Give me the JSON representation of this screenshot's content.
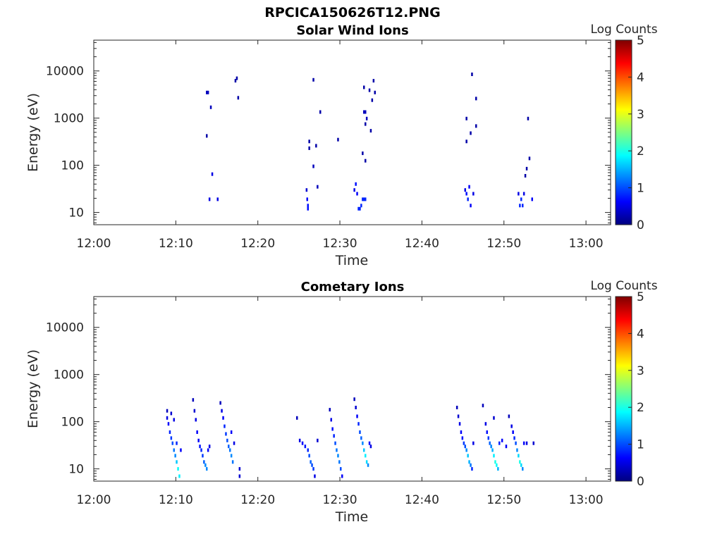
{
  "figure_title": "RPCICA150626T12.PNG",
  "colors": {
    "colormap": [
      "#00007f",
      "#0000ff",
      "#007fff",
      "#00ffff",
      "#7fff7f",
      "#ffff00",
      "#ff7f00",
      "#ff0000",
      "#7f0000"
    ],
    "axis": "#262626"
  },
  "chart_data": [
    {
      "type": "heatmap",
      "title": "Solar Wind Ions",
      "xlabel": "Time",
      "ylabel": "Energy (eV)",
      "colorbar_label": "Log Counts",
      "colorbar_range": [
        0,
        5
      ],
      "colorbar_ticks": [
        "0",
        "1",
        "2",
        "3",
        "4",
        "5"
      ],
      "xlim_minutes": [
        0,
        63
      ],
      "x_ticks": [
        "12:00",
        "12:10",
        "12:20",
        "12:30",
        "12:40",
        "12:50",
        "13:00"
      ],
      "yscale": "log",
      "ylim": [
        5.5,
        45000
      ],
      "y_ticks": [
        "10",
        "100",
        "1000",
        "10000"
      ],
      "grid": false,
      "cells": [
        {
          "t": "12:13:40",
          "e": 3500,
          "v": 0.3
        },
        {
          "t": "12:13:50",
          "e": 3500,
          "v": 0.3
        },
        {
          "t": "12:13:40",
          "e": 420,
          "v": 0.2
        },
        {
          "t": "12:14:10",
          "e": 1700,
          "v": 0.3
        },
        {
          "t": "12:14:20",
          "e": 65,
          "v": 0.5
        },
        {
          "t": "12:14:00",
          "e": 19,
          "v": 0.5
        },
        {
          "t": "12:15:00",
          "e": 19,
          "v": 0.5
        },
        {
          "t": "12:17:20",
          "e": 7000,
          "v": 0.2
        },
        {
          "t": "12:17:10",
          "e": 6200,
          "v": 0.2
        },
        {
          "t": "12:17:30",
          "e": 2700,
          "v": 0.2
        },
        {
          "t": "12:25:50",
          "e": 30,
          "v": 0.4
        },
        {
          "t": "12:25:55",
          "e": 19,
          "v": 0.6
        },
        {
          "t": "12:26:00",
          "e": 14,
          "v": 0.7
        },
        {
          "t": "12:26:00",
          "e": 12,
          "v": 0.7
        },
        {
          "t": "12:26:10",
          "e": 320,
          "v": 0.2
        },
        {
          "t": "12:26:10",
          "e": 230,
          "v": 0.2
        },
        {
          "t": "12:26:40",
          "e": 6500,
          "v": 0.2
        },
        {
          "t": "12:26:40",
          "e": 95,
          "v": 0.3
        },
        {
          "t": "12:27:00",
          "e": 260,
          "v": 0.2
        },
        {
          "t": "12:27:10",
          "e": 35,
          "v": 0.3
        },
        {
          "t": "12:27:30",
          "e": 1350,
          "v": 0.2
        },
        {
          "t": "12:29:40",
          "e": 350,
          "v": 0.2
        },
        {
          "t": "12:31:40",
          "e": 30,
          "v": 0.5
        },
        {
          "t": "12:31:50",
          "e": 40,
          "v": 0.7
        },
        {
          "t": "12:32:00",
          "e": 25,
          "v": 0.6
        },
        {
          "t": "12:32:10",
          "e": 12,
          "v": 0.8
        },
        {
          "t": "12:32:20",
          "e": 12,
          "v": 0.8
        },
        {
          "t": "12:32:30",
          "e": 14,
          "v": 0.8
        },
        {
          "t": "12:32:40",
          "e": 19,
          "v": 0.8
        },
        {
          "t": "12:32:50",
          "e": 19,
          "v": 0.8
        },
        {
          "t": "12:33:00",
          "e": 19,
          "v": 0.8
        },
        {
          "t": "12:32:50",
          "e": 4500,
          "v": 0.2
        },
        {
          "t": "12:33:00",
          "e": 1350,
          "v": 0.3
        },
        {
          "t": "12:32:50",
          "e": 1350,
          "v": 0.3
        },
        {
          "t": "12:32:40",
          "e": 180,
          "v": 0.2
        },
        {
          "t": "12:33:00",
          "e": 125,
          "v": 0.2
        },
        {
          "t": "12:33:10",
          "e": 980,
          "v": 0.3
        },
        {
          "t": "12:33:00",
          "e": 750,
          "v": 0.2
        },
        {
          "t": "12:33:30",
          "e": 3900,
          "v": 0.2
        },
        {
          "t": "12:33:40",
          "e": 540,
          "v": 0.2
        },
        {
          "t": "12:34:00",
          "e": 6200,
          "v": 0.2
        },
        {
          "t": "12:34:10",
          "e": 3500,
          "v": 0.2
        },
        {
          "t": "12:33:50",
          "e": 2400,
          "v": 0.2
        },
        {
          "t": "12:45:10",
          "e": 30,
          "v": 0.5
        },
        {
          "t": "12:45:20",
          "e": 25,
          "v": 0.7
        },
        {
          "t": "12:45:30",
          "e": 19,
          "v": 0.8
        },
        {
          "t": "12:45:40",
          "e": 35,
          "v": 0.6
        },
        {
          "t": "12:45:50",
          "e": 14,
          "v": 0.6
        },
        {
          "t": "12:46:10",
          "e": 25,
          "v": 0.5
        },
        {
          "t": "12:45:20",
          "e": 980,
          "v": 0.2
        },
        {
          "t": "12:45:20",
          "e": 320,
          "v": 0.2
        },
        {
          "t": "12:45:50",
          "e": 480,
          "v": 0.2
        },
        {
          "t": "12:46:00",
          "e": 8500,
          "v": 0.2
        },
        {
          "t": "12:46:30",
          "e": 2600,
          "v": 0.2
        },
        {
          "t": "12:46:30",
          "e": 680,
          "v": 0.2
        },
        {
          "t": "12:51:40",
          "e": 25,
          "v": 0.5
        },
        {
          "t": "12:51:50",
          "e": 14,
          "v": 0.8
        },
        {
          "t": "12:52:00",
          "e": 19,
          "v": 0.8
        },
        {
          "t": "12:52:10",
          "e": 14,
          "v": 0.8
        },
        {
          "t": "12:52:20",
          "e": 25,
          "v": 0.5
        },
        {
          "t": "12:53:20",
          "e": 19,
          "v": 0.6
        },
        {
          "t": "12:52:30",
          "e": 60,
          "v": 0.2
        },
        {
          "t": "12:52:40",
          "e": 85,
          "v": 0.2
        },
        {
          "t": "12:52:50",
          "e": 980,
          "v": 0.2
        },
        {
          "t": "12:53:00",
          "e": 140,
          "v": 0.2
        }
      ]
    },
    {
      "type": "heatmap",
      "title": "Cometary Ions",
      "xlabel": "Time",
      "ylabel": "Energy (eV)",
      "colorbar_label": "Log Counts",
      "colorbar_range": [
        0,
        5
      ],
      "colorbar_ticks": [
        "0",
        "1",
        "2",
        "3",
        "4",
        "5"
      ],
      "xlim_minutes": [
        0,
        63
      ],
      "x_ticks": [
        "12:00",
        "12:10",
        "12:20",
        "12:30",
        "12:40",
        "12:50",
        "13:00"
      ],
      "yscale": "log",
      "ylim": [
        5.5,
        45000
      ],
      "y_ticks": [
        "10",
        "100",
        "1000",
        "10000"
      ],
      "grid": false,
      "cells": [
        {
          "t": "12:08:50",
          "e": 170,
          "v": 0.3
        },
        {
          "t": "12:08:50",
          "e": 120,
          "v": 0.5
        },
        {
          "t": "12:09:00",
          "e": 90,
          "v": 0.6
        },
        {
          "t": "12:09:10",
          "e": 60,
          "v": 0.8
        },
        {
          "t": "12:09:20",
          "e": 45,
          "v": 0.9
        },
        {
          "t": "12:09:30",
          "e": 35,
          "v": 1.0
        },
        {
          "t": "12:09:40",
          "e": 25,
          "v": 1.2
        },
        {
          "t": "12:09:50",
          "e": 19,
          "v": 1.3
        },
        {
          "t": "12:10:00",
          "e": 14,
          "v": 1.6
        },
        {
          "t": "12:10:10",
          "e": 10,
          "v": 1.9
        },
        {
          "t": "12:10:20",
          "e": 7,
          "v": 1.8
        },
        {
          "t": "12:09:20",
          "e": 150,
          "v": 0.4
        },
        {
          "t": "12:09:40",
          "e": 110,
          "v": 0.5
        },
        {
          "t": "12:10:00",
          "e": 35,
          "v": 0.8
        },
        {
          "t": "12:10:30",
          "e": 25,
          "v": 0.6
        },
        {
          "t": "12:12:00",
          "e": 290,
          "v": 0.3
        },
        {
          "t": "12:12:10",
          "e": 170,
          "v": 0.4
        },
        {
          "t": "12:12:20",
          "e": 110,
          "v": 0.5
        },
        {
          "t": "12:12:30",
          "e": 60,
          "v": 0.6
        },
        {
          "t": "12:12:40",
          "e": 40,
          "v": 0.6
        },
        {
          "t": "12:12:50",
          "e": 30,
          "v": 0.7
        },
        {
          "t": "12:13:00",
          "e": 25,
          "v": 0.8
        },
        {
          "t": "12:13:10",
          "e": 19,
          "v": 0.9
        },
        {
          "t": "12:13:20",
          "e": 14,
          "v": 1.1
        },
        {
          "t": "12:13:30",
          "e": 12,
          "v": 1.3
        },
        {
          "t": "12:13:40",
          "e": 10,
          "v": 1.3
        },
        {
          "t": "12:13:50",
          "e": 25,
          "v": 0.6
        },
        {
          "t": "12:14:00",
          "e": 30,
          "v": 0.5
        },
        {
          "t": "12:15:20",
          "e": 250,
          "v": 0.3
        },
        {
          "t": "12:15:30",
          "e": 170,
          "v": 0.5
        },
        {
          "t": "12:15:40",
          "e": 120,
          "v": 0.6
        },
        {
          "t": "12:15:50",
          "e": 80,
          "v": 0.8
        },
        {
          "t": "12:16:00",
          "e": 55,
          "v": 0.9
        },
        {
          "t": "12:16:10",
          "e": 40,
          "v": 1.0
        },
        {
          "t": "12:16:20",
          "e": 30,
          "v": 1.1
        },
        {
          "t": "12:16:30",
          "e": 25,
          "v": 1.2
        },
        {
          "t": "12:16:40",
          "e": 19,
          "v": 1.3
        },
        {
          "t": "12:16:50",
          "e": 14,
          "v": 1.2
        },
        {
          "t": "12:16:40",
          "e": 60,
          "v": 0.6
        },
        {
          "t": "12:17:00",
          "e": 35,
          "v": 0.5
        },
        {
          "t": "12:17:40",
          "e": 10,
          "v": 0.4
        },
        {
          "t": "12:17:40",
          "e": 7,
          "v": 0.4
        },
        {
          "t": "12:24:40",
          "e": 120,
          "v": 0.3
        },
        {
          "t": "12:25:00",
          "e": 40,
          "v": 0.5
        },
        {
          "t": "12:25:20",
          "e": 35,
          "v": 0.6
        },
        {
          "t": "12:25:40",
          "e": 30,
          "v": 0.7
        },
        {
          "t": "12:26:00",
          "e": 25,
          "v": 0.8
        },
        {
          "t": "12:26:10",
          "e": 19,
          "v": 1.0
        },
        {
          "t": "12:26:20",
          "e": 14,
          "v": 1.1
        },
        {
          "t": "12:26:30",
          "e": 12,
          "v": 1.0
        },
        {
          "t": "12:26:40",
          "e": 10,
          "v": 0.9
        },
        {
          "t": "12:26:50",
          "e": 7,
          "v": 0.5
        },
        {
          "t": "12:27:10",
          "e": 40,
          "v": 0.4
        },
        {
          "t": "12:28:40",
          "e": 180,
          "v": 0.3
        },
        {
          "t": "12:28:50",
          "e": 110,
          "v": 0.5
        },
        {
          "t": "12:29:00",
          "e": 70,
          "v": 0.7
        },
        {
          "t": "12:29:10",
          "e": 50,
          "v": 0.8
        },
        {
          "t": "12:29:20",
          "e": 35,
          "v": 1.0
        },
        {
          "t": "12:29:30",
          "e": 25,
          "v": 1.2
        },
        {
          "t": "12:29:40",
          "e": 19,
          "v": 1.3
        },
        {
          "t": "12:29:50",
          "e": 14,
          "v": 1.2
        },
        {
          "t": "12:30:00",
          "e": 10,
          "v": 1.0
        },
        {
          "t": "12:30:10",
          "e": 7,
          "v": 0.6
        },
        {
          "t": "12:31:40",
          "e": 300,
          "v": 0.3
        },
        {
          "t": "12:31:50",
          "e": 200,
          "v": 0.4
        },
        {
          "t": "12:32:00",
          "e": 130,
          "v": 0.6
        },
        {
          "t": "12:32:10",
          "e": 90,
          "v": 0.8
        },
        {
          "t": "12:32:20",
          "e": 60,
          "v": 1.0
        },
        {
          "t": "12:32:30",
          "e": 45,
          "v": 1.1
        },
        {
          "t": "12:32:40",
          "e": 35,
          "v": 1.3
        },
        {
          "t": "12:32:50",
          "e": 25,
          "v": 1.6
        },
        {
          "t": "12:33:00",
          "e": 19,
          "v": 1.8
        },
        {
          "t": "12:33:10",
          "e": 14,
          "v": 1.7
        },
        {
          "t": "12:33:20",
          "e": 12,
          "v": 1.3
        },
        {
          "t": "12:33:30",
          "e": 35,
          "v": 0.6
        },
        {
          "t": "12:33:40",
          "e": 30,
          "v": 0.5
        },
        {
          "t": "12:44:10",
          "e": 200,
          "v": 0.3
        },
        {
          "t": "12:44:20",
          "e": 130,
          "v": 0.4
        },
        {
          "t": "12:44:30",
          "e": 90,
          "v": 0.5
        },
        {
          "t": "12:44:40",
          "e": 60,
          "v": 0.6
        },
        {
          "t": "12:44:50",
          "e": 45,
          "v": 0.7
        },
        {
          "t": "12:45:00",
          "e": 35,
          "v": 0.9
        },
        {
          "t": "12:45:10",
          "e": 30,
          "v": 1.0
        },
        {
          "t": "12:45:20",
          "e": 25,
          "v": 1.3
        },
        {
          "t": "12:45:30",
          "e": 19,
          "v": 1.6
        },
        {
          "t": "12:45:40",
          "e": 14,
          "v": 1.5
        },
        {
          "t": "12:45:50",
          "e": 12,
          "v": 1.2
        },
        {
          "t": "12:46:00",
          "e": 10,
          "v": 0.8
        },
        {
          "t": "12:46:10",
          "e": 35,
          "v": 0.5
        },
        {
          "t": "12:47:20",
          "e": 220,
          "v": 0.3
        },
        {
          "t": "12:47:40",
          "e": 90,
          "v": 0.5
        },
        {
          "t": "12:47:50",
          "e": 60,
          "v": 0.7
        },
        {
          "t": "12:48:00",
          "e": 45,
          "v": 0.9
        },
        {
          "t": "12:48:10",
          "e": 35,
          "v": 1.1
        },
        {
          "t": "12:48:20",
          "e": 30,
          "v": 1.3
        },
        {
          "t": "12:48:30",
          "e": 25,
          "v": 1.5
        },
        {
          "t": "12:48:40",
          "e": 19,
          "v": 1.8
        },
        {
          "t": "12:48:50",
          "e": 14,
          "v": 2.0
        },
        {
          "t": "12:49:00",
          "e": 12,
          "v": 1.9
        },
        {
          "t": "12:49:10",
          "e": 10,
          "v": 1.5
        },
        {
          "t": "12:49:20",
          "e": 35,
          "v": 0.8
        },
        {
          "t": "12:48:40",
          "e": 120,
          "v": 0.4
        },
        {
          "t": "12:49:40",
          "e": 40,
          "v": 0.6
        },
        {
          "t": "12:50:10",
          "e": 30,
          "v": 0.6
        },
        {
          "t": "12:50:30",
          "e": 130,
          "v": 0.3
        },
        {
          "t": "12:50:50",
          "e": 80,
          "v": 0.5
        },
        {
          "t": "12:51:00",
          "e": 60,
          "v": 0.6
        },
        {
          "t": "12:51:10",
          "e": 45,
          "v": 0.8
        },
        {
          "t": "12:51:20",
          "e": 35,
          "v": 1.0
        },
        {
          "t": "12:51:30",
          "e": 25,
          "v": 1.3
        },
        {
          "t": "12:51:40",
          "e": 19,
          "v": 1.7
        },
        {
          "t": "12:51:50",
          "e": 14,
          "v": 2.0
        },
        {
          "t": "12:52:00",
          "e": 12,
          "v": 1.7
        },
        {
          "t": "12:52:10",
          "e": 10,
          "v": 1.3
        },
        {
          "t": "12:52:20",
          "e": 35,
          "v": 0.6
        },
        {
          "t": "12:52:40",
          "e": 35,
          "v": 0.5
        },
        {
          "t": "12:53:30",
          "e": 35,
          "v": 0.4
        }
      ]
    }
  ]
}
